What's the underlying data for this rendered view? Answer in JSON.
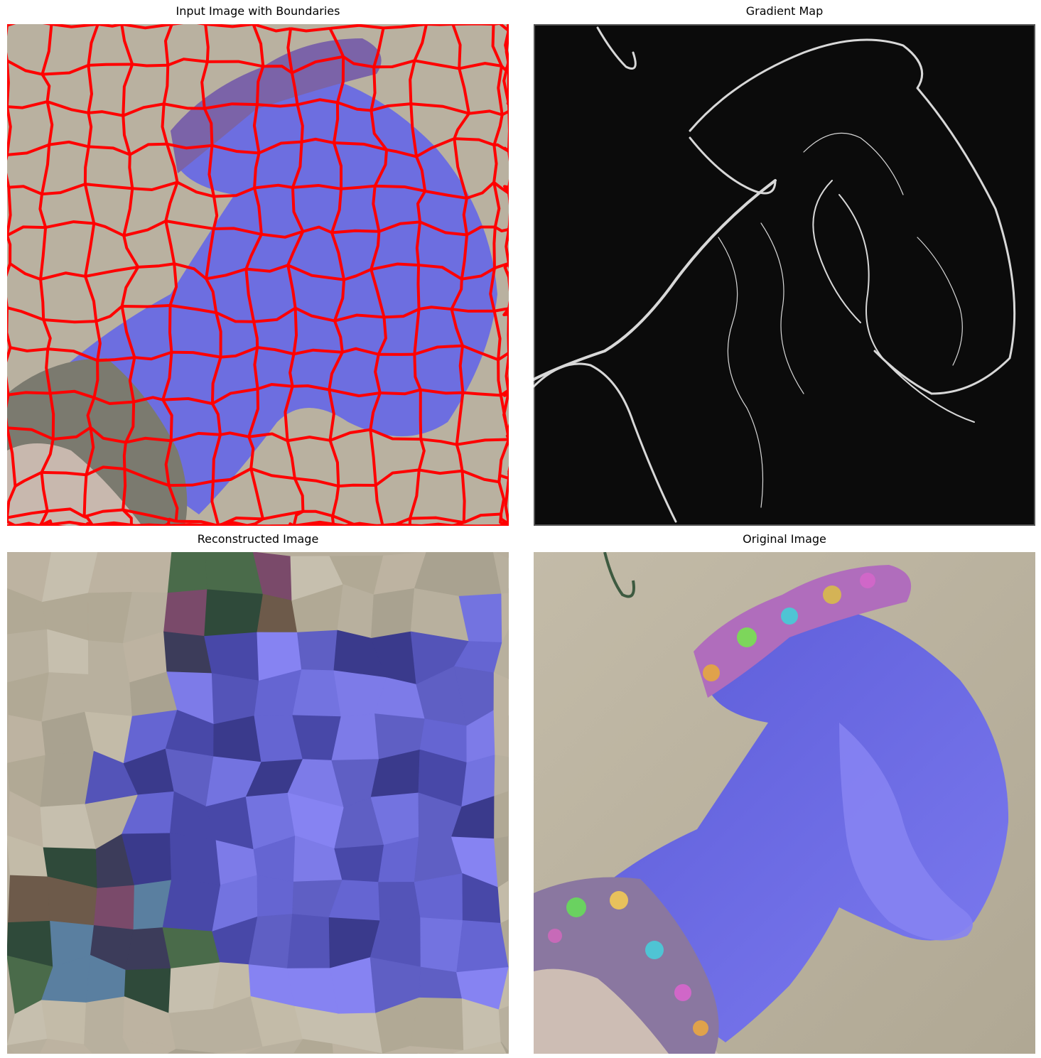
{
  "figure": {
    "panels": [
      {
        "id": "boundaries",
        "title": "Input Image with Boundaries"
      },
      {
        "id": "gradient",
        "title": "Gradient Map"
      },
      {
        "id": "reconstructed",
        "title": "Reconstructed Image"
      },
      {
        "id": "original",
        "title": "Original Image"
      }
    ]
  },
  "colors": {
    "background": "#ffffff",
    "boundary_line": "#ff0000",
    "mitten_blue": "#6e6ee6",
    "backdrop_beige": "#b8b09e",
    "gradient_background": "#0b0b0b",
    "gradient_edge": "#d8d8d8"
  }
}
